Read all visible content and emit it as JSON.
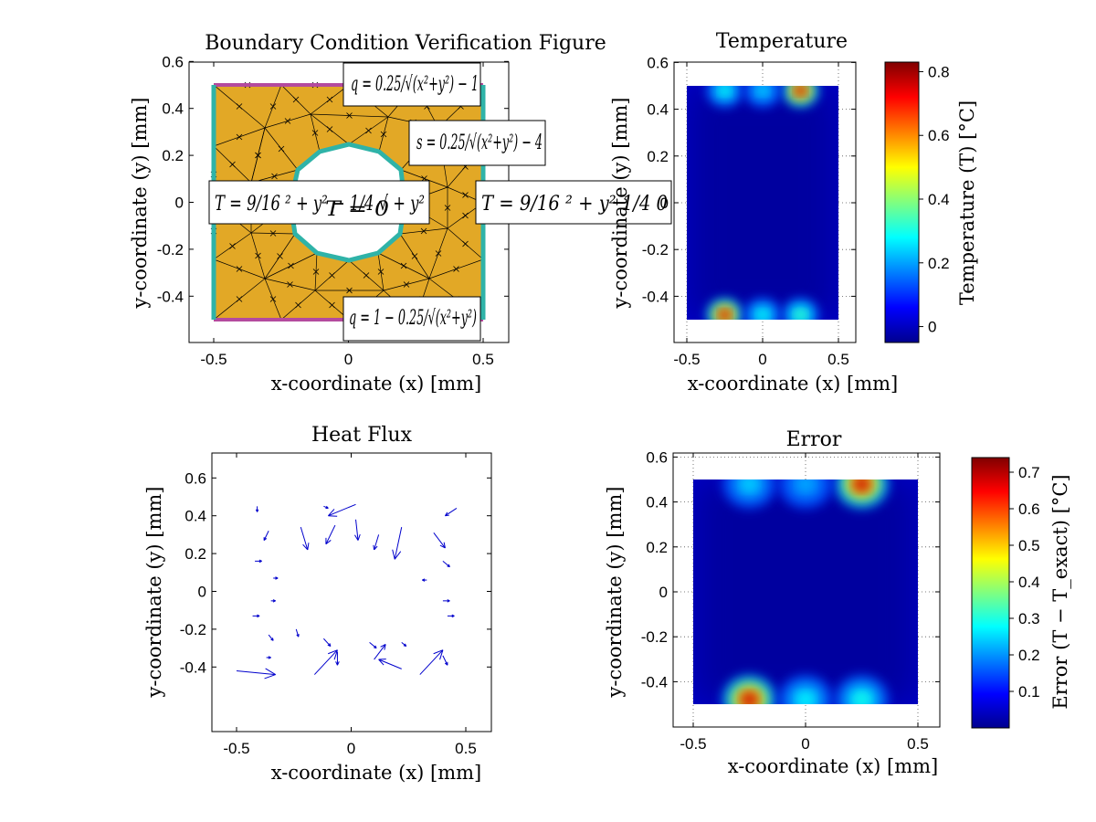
{
  "chart_data": [
    {
      "type": "diagram",
      "panel": "boundary",
      "title": "Boundary Condition Verification Figure",
      "xlabel": "x-coordinate (x) [mm]",
      "ylabel": "y-coordinate (y) [mm]",
      "xlim": [
        -0.6,
        0.6
      ],
      "ylim": [
        -0.6,
        0.6
      ],
      "xticks": [
        "-0.5",
        "0",
        "0.5"
      ],
      "yticks": [
        "0.6",
        "0.4",
        "0.2",
        "0",
        "-0.2",
        "-0.4"
      ],
      "domain": {
        "xmin": -0.5,
        "xmax": 0.5,
        "ymin": -0.5,
        "ymax": 0.5,
        "hole_radius": 0.25
      },
      "annotations": {
        "top": "q = 0.25/√(x²+y²) − 1",
        "hole": "s = 0.25/√(x²+y²) − 4",
        "left": "T = 9/16 ² + y² − 1/4 √ + y²",
        "left_overlap": "T = 0",
        "right": "T = 9/16 ² + y² 1/4 0",
        "bottom": "q = 1 − 0.25/√(x²+y²)"
      },
      "colors": {
        "mesh_fill": "#e2a826",
        "edge_flux": "#b44a9e",
        "edge_temperature": "#2fb3a8"
      }
    },
    {
      "type": "heatmap",
      "panel": "temperature",
      "title": "Temperature",
      "xlabel": "x-coordinate (x) [mm]",
      "ylabel": "y-coordinate (y) [mm]",
      "xlim": [
        -0.6,
        0.6
      ],
      "ylim": [
        -0.6,
        0.6
      ],
      "xticks": [
        "-0.5",
        "0",
        "0.5"
      ],
      "yticks": [
        "0.6",
        "0.4",
        "0.2",
        "0",
        "-0.2",
        "-0.4"
      ],
      "colorbar": {
        "label": "Temperature (T) [°C]",
        "ticks": [
          "0.8",
          "0.6",
          "0.4",
          "0.2",
          "0"
        ],
        "range": [
          -0.05,
          0.83
        ]
      },
      "hotspots": [
        {
          "x": 0.25,
          "y": 0.48,
          "value": 0.8
        },
        {
          "x": -0.25,
          "y": 0.48,
          "value": 0.3
        },
        {
          "x": 0.0,
          "y": 0.48,
          "value": 0.25
        },
        {
          "x": -0.25,
          "y": -0.48,
          "value": 0.8
        },
        {
          "x": 0.0,
          "y": -0.48,
          "value": 0.3
        },
        {
          "x": 0.25,
          "y": -0.48,
          "value": 0.35
        }
      ],
      "grid": true
    },
    {
      "type": "quiver",
      "panel": "heat-flux",
      "title": "Heat Flux",
      "xlabel": "x-coordinate (x) [mm]",
      "ylabel": "y-coordinate (y) [mm]",
      "xlim": [
        -0.6,
        0.6
      ],
      "ylim": [
        -0.6,
        0.6
      ],
      "xticks": [
        "-0.5",
        "0",
        "0.5"
      ],
      "yticks": [
        "0.6",
        "0.4",
        "0.2",
        "0",
        "-0.2",
        "-0.4"
      ],
      "color": "#0000cc",
      "vectors": [
        {
          "x": -0.41,
          "y": 0.45,
          "u": 0.0,
          "v": -0.03
        },
        {
          "x": -0.36,
          "y": 0.32,
          "u": -0.02,
          "v": -0.05
        },
        {
          "x": -0.22,
          "y": 0.34,
          "u": 0.03,
          "v": -0.12
        },
        {
          "x": -0.12,
          "y": 0.45,
          "u": 0.02,
          "v": -0.01
        },
        {
          "x": -0.07,
          "y": 0.35,
          "u": -0.04,
          "v": -0.1
        },
        {
          "x": 0.02,
          "y": 0.38,
          "u": 0.01,
          "v": -0.11
        },
        {
          "x": 0.02,
          "y": 0.46,
          "u": -0.12,
          "v": -0.06
        },
        {
          "x": 0.12,
          "y": 0.3,
          "u": -0.02,
          "v": -0.08
        },
        {
          "x": 0.22,
          "y": 0.34,
          "u": -0.03,
          "v": -0.17
        },
        {
          "x": 0.36,
          "y": 0.31,
          "u": 0.05,
          "v": -0.08
        },
        {
          "x": 0.46,
          "y": 0.44,
          "u": -0.05,
          "v": -0.04
        },
        {
          "x": -0.42,
          "y": 0.16,
          "u": 0.03,
          "v": 0.0
        },
        {
          "x": -0.34,
          "y": 0.07,
          "u": 0.02,
          "v": 0.0
        },
        {
          "x": 0.4,
          "y": 0.16,
          "u": 0.03,
          "v": -0.03
        },
        {
          "x": 0.33,
          "y": 0.06,
          "u": -0.02,
          "v": 0.0
        },
        {
          "x": -0.35,
          "y": -0.05,
          "u": 0.02,
          "v": 0.0
        },
        {
          "x": 0.4,
          "y": -0.05,
          "u": 0.03,
          "v": 0.0
        },
        {
          "x": -0.43,
          "y": -0.13,
          "u": 0.03,
          "v": 0.0
        },
        {
          "x": 0.42,
          "y": -0.13,
          "u": 0.03,
          "v": 0.0
        },
        {
          "x": -0.36,
          "y": -0.23,
          "u": 0.02,
          "v": -0.03
        },
        {
          "x": -0.24,
          "y": -0.2,
          "u": 0.01,
          "v": -0.04
        },
        {
          "x": -0.12,
          "y": -0.25,
          "u": 0.03,
          "v": -0.04
        },
        {
          "x": -0.06,
          "y": -0.32,
          "u": 0.0,
          "v": -0.07
        },
        {
          "x": -0.16,
          "y": -0.44,
          "u": 0.1,
          "v": 0.13
        },
        {
          "x": 0.08,
          "y": -0.27,
          "u": 0.03,
          "v": -0.03
        },
        {
          "x": 0.1,
          "y": -0.36,
          "u": 0.05,
          "v": 0.08
        },
        {
          "x": 0.22,
          "y": -0.41,
          "u": -0.1,
          "v": 0.05
        },
        {
          "x": 0.3,
          "y": -0.44,
          "u": 0.1,
          "v": 0.13
        },
        {
          "x": 0.4,
          "y": -0.34,
          "u": 0.02,
          "v": -0.05
        },
        {
          "x": -0.5,
          "y": -0.42,
          "u": 0.17,
          "v": -0.02
        },
        {
          "x": -0.37,
          "y": -0.35,
          "u": 0.02,
          "v": 0.0
        },
        {
          "x": 0.22,
          "y": -0.27,
          "u": 0.02,
          "v": -0.02
        }
      ]
    },
    {
      "type": "heatmap",
      "panel": "error",
      "title": "Error",
      "xlabel": "x-coordinate (x) [mm]",
      "ylabel": "y-coordinate (y) [mm]",
      "xlim": [
        -0.6,
        0.6
      ],
      "ylim": [
        -0.6,
        0.6
      ],
      "xticks": [
        "-0.5",
        "0",
        "0.5"
      ],
      "yticks": [
        "0.6",
        "0.4",
        "0.2",
        "0",
        "-0.2",
        "-0.4"
      ],
      "colorbar": {
        "label": "Error (T − T_exact) [°C]",
        "ticks": [
          "0.7",
          "0.6",
          "0.5",
          "0.4",
          "0.3",
          "0.2",
          "0.1"
        ],
        "range": [
          0.0,
          0.74
        ]
      },
      "hotspots": [
        {
          "x": 0.25,
          "y": 0.48,
          "value": 0.7
        },
        {
          "x": -0.25,
          "y": 0.48,
          "value": 0.25
        },
        {
          "x": 0.0,
          "y": 0.48,
          "value": 0.22
        },
        {
          "x": -0.25,
          "y": -0.48,
          "value": 0.7
        },
        {
          "x": 0.0,
          "y": -0.48,
          "value": 0.28
        },
        {
          "x": 0.25,
          "y": -0.48,
          "value": 0.3
        }
      ],
      "grid": true
    }
  ]
}
